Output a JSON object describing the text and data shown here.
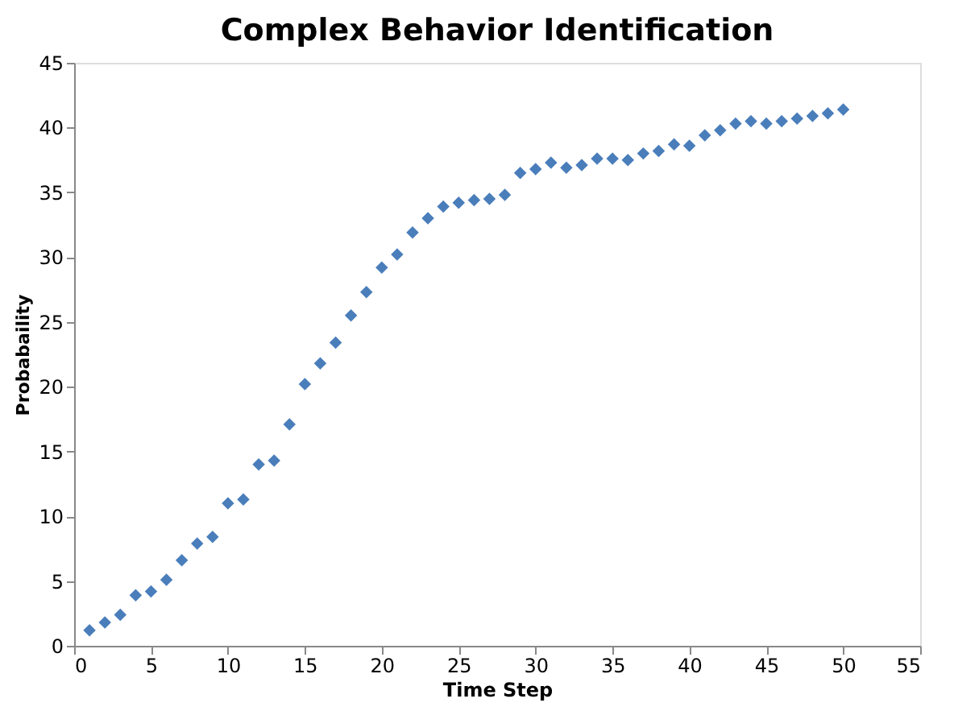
{
  "chart_data": {
    "type": "scatter",
    "title": "Complex Behavior Identification",
    "xlabel": "Time Step",
    "ylabel": "Probabaility",
    "x": [
      1,
      2,
      3,
      4,
      5,
      6,
      7,
      8,
      9,
      10,
      11,
      12,
      13,
      14,
      15,
      16,
      17,
      18,
      19,
      20,
      21,
      22,
      23,
      24,
      25,
      26,
      27,
      28,
      29,
      30,
      31,
      32,
      33,
      34,
      35,
      36,
      37,
      38,
      39,
      40,
      41,
      42,
      43,
      44,
      45,
      46,
      47,
      48,
      49,
      50
    ],
    "series": [
      {
        "color": "#4a7ebb",
        "values": [
          1.2,
          1.8,
          2.4,
          3.9,
          4.2,
          5.1,
          6.6,
          7.9,
          8.4,
          11.0,
          11.3,
          14.0,
          14.3,
          17.1,
          20.2,
          21.8,
          23.4,
          25.5,
          27.3,
          29.2,
          30.2,
          31.9,
          33.0,
          33.9,
          34.2,
          34.4,
          34.5,
          34.8,
          36.5,
          36.8,
          37.3,
          36.9,
          37.1,
          37.6,
          37.6,
          37.5,
          38.0,
          38.2,
          38.7,
          38.6,
          39.4,
          39.8,
          40.3,
          40.5,
          40.3,
          40.5,
          40.7,
          40.9,
          41.1,
          41.4
        ]
      }
    ],
    "xlim": [
      0,
      55
    ],
    "xticks": [
      0,
      5,
      10,
      15,
      20,
      25,
      30,
      35,
      40,
      45,
      50,
      55
    ],
    "ylim": [
      0,
      45
    ],
    "yticks": [
      0,
      5,
      10,
      15,
      20,
      25,
      30,
      35,
      40,
      45
    ],
    "grid": false,
    "legend": false,
    "marker": "diamond"
  }
}
